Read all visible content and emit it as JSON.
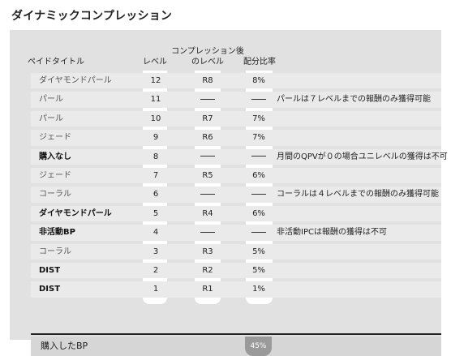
{
  "title": "ダイナミックコンプレッション",
  "headers": {
    "paid_title": "ペイドタイトル",
    "level": "レベル",
    "compressed_level_1": "コンプレッション後",
    "compressed_level_2": "のレベル",
    "ratio": "配分比率"
  },
  "dash_symbol": "—",
  "rows": [
    {
      "name": "ダイヤモンドパール",
      "bold": false,
      "level": "12",
      "compressed": "R8",
      "ratio": "8%",
      "note": ""
    },
    {
      "name": "パール",
      "bold": false,
      "level": "11",
      "compressed": null,
      "ratio": null,
      "note": "パールは７レベルまでの報酬のみ獲得可能"
    },
    {
      "name": "パール",
      "bold": false,
      "level": "10",
      "compressed": "R7",
      "ratio": "7%",
      "note": ""
    },
    {
      "name": "ジェード",
      "bold": false,
      "level": "9",
      "compressed": "R6",
      "ratio": "7%",
      "note": ""
    },
    {
      "name": "購入なし",
      "bold": true,
      "level": "8",
      "compressed": null,
      "ratio": null,
      "note": "月間のQPVが０の場合ユニレベルの獲得は不可"
    },
    {
      "name": "ジェード",
      "bold": false,
      "level": "7",
      "compressed": "R5",
      "ratio": "6%",
      "note": ""
    },
    {
      "name": "コーラル",
      "bold": false,
      "level": "6",
      "compressed": null,
      "ratio": null,
      "note": "コーラルは４レベルまでの報酬のみ獲得可能"
    },
    {
      "name": "ダイヤモンドパール",
      "bold": true,
      "level": "5",
      "compressed": "R4",
      "ratio": "6%",
      "note": ""
    },
    {
      "name": "非活動BP",
      "bold": true,
      "level": "4",
      "compressed": null,
      "ratio": null,
      "note": "非活動IPCは報酬の獲得は不可"
    },
    {
      "name": "コーラル",
      "bold": false,
      "level": "3",
      "compressed": "R3",
      "ratio": "5%",
      "note": ""
    },
    {
      "name": "DIST",
      "bold": true,
      "level": "2",
      "compressed": "R2",
      "ratio": "5%",
      "note": ""
    },
    {
      "name": "DIST",
      "bold": true,
      "level": "1",
      "compressed": "R1",
      "ratio": "1%",
      "note": ""
    }
  ],
  "total": {
    "label": "購入したBP",
    "ratio": "45%"
  }
}
